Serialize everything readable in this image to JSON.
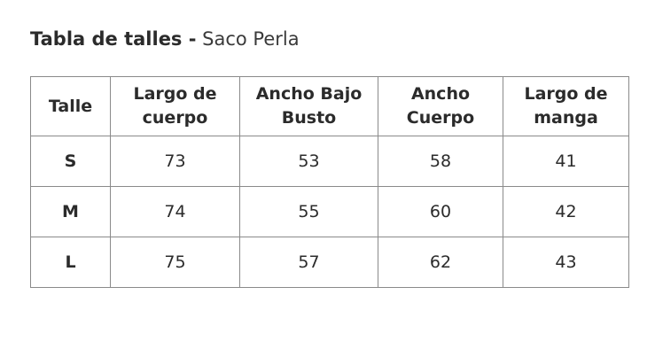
{
  "title": {
    "bold": "Tabla de talles -",
    "light": "Saco Perla"
  },
  "table": {
    "headers": [
      "Talle",
      "Largo de\ncuerpo",
      "Ancho Bajo\nBusto",
      "Ancho\nCuerpo",
      "Largo de\nmanga"
    ],
    "rows": [
      [
        "S",
        "73",
        "53",
        "58",
        "41"
      ],
      [
        "M",
        "74",
        "55",
        "60",
        "42"
      ],
      [
        "L",
        "75",
        "57",
        "62",
        "43"
      ]
    ]
  }
}
